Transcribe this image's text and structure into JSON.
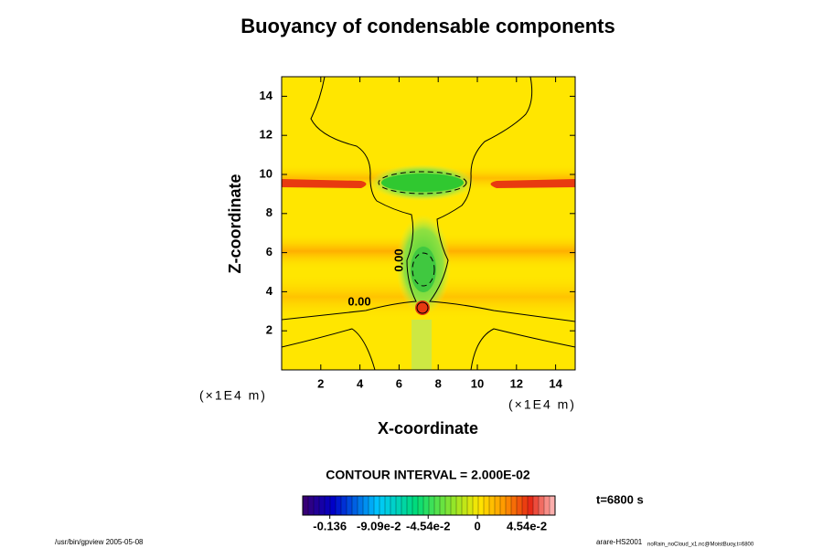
{
  "chart_data": {
    "type": "contour",
    "title": "Buoyancy of condensable components",
    "xlabel": "X-coordinate",
    "ylabel": "Z-coordinate",
    "xunits": "(×1E4 m)",
    "yunits": "(×1E4 m)",
    "xlim": [
      0,
      15
    ],
    "xticks": [
      2,
      4,
      6,
      8,
      10,
      12,
      14
    ],
    "ylim": [
      0,
      15
    ],
    "yticks": [
      2,
      4,
      6,
      8,
      10,
      12,
      14
    ],
    "contour_labels": [
      "0.00",
      "0.00"
    ],
    "contour_interval_text": "CONTOUR INTERVAL = 2.000E-02",
    "time_text": "t=6800 s",
    "colorbar": {
      "clim": [
        -0.161,
        0.0715
      ],
      "ticks": [
        -0.136,
        {
          "value": -0.0909,
          "label": "-9.09e-2"
        },
        {
          "value": -0.0454,
          "label": "-4.54e-2"
        },
        0,
        {
          "value": 0.0454,
          "label": "4.54e-2"
        }
      ]
    },
    "footer_left": "/usr/bin/gpview 2005-05-08",
    "footer_right": "arare-HS2001",
    "footer_right_sub": "noRain_noCloud_x1.nc@MoistBuoy,t=6800"
  }
}
